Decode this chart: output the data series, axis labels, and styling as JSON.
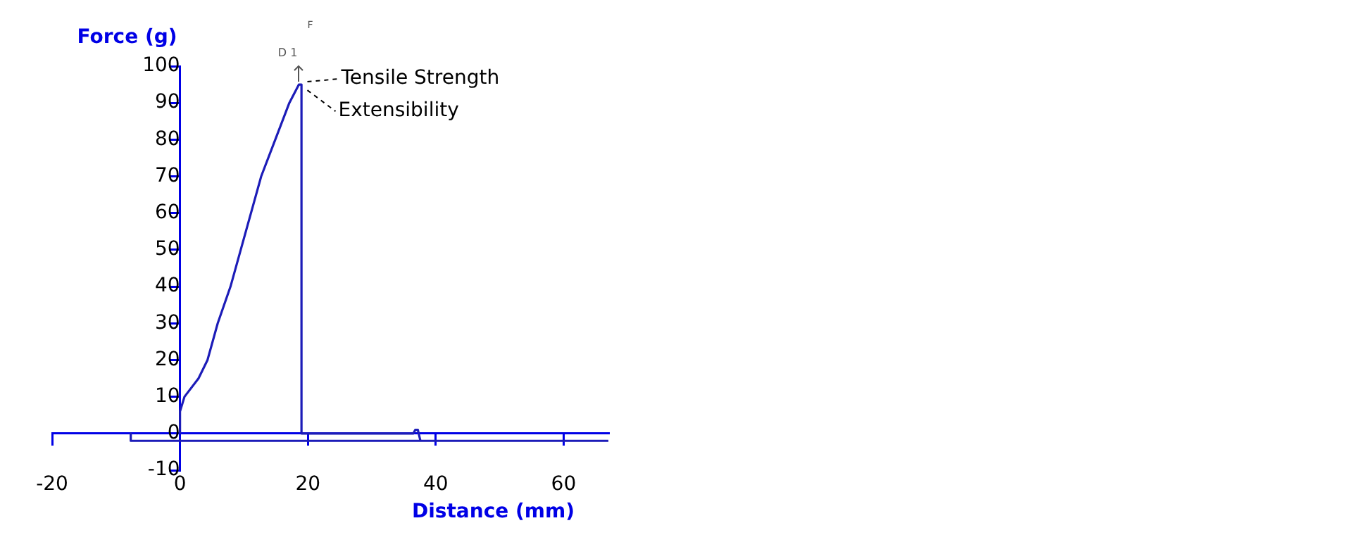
{
  "chart_data": {
    "type": "line",
    "xlabel": "Distance (mm)",
    "ylabel": "Force (g)",
    "xlim": [
      -20,
      67
    ],
    "ylim": [
      -10,
      100
    ],
    "xticks": [
      -20,
      0,
      20,
      40,
      60
    ],
    "yticks": [
      -10,
      0,
      10,
      20,
      30,
      40,
      50,
      60,
      70,
      80,
      90,
      100
    ],
    "grid": false,
    "legend": false,
    "series": [
      {
        "color": "#1c1cb8",
        "x": [
          0,
          0,
          0.7,
          2.9,
          4.3,
          5.9,
          7.9,
          9.5,
          12.7,
          14.9,
          17.1,
          18.6,
          19,
          19,
          36.5,
          36.8,
          37.2,
          37.6
        ],
        "values": [
          0,
          6,
          10,
          15,
          20,
          30,
          40,
          50,
          70,
          80,
          90,
          95,
          95,
          0,
          0,
          1,
          1,
          -2
        ]
      },
      {
        "color": "#1c1cb8",
        "x": [
          -7.7,
          -7.7,
          67
        ],
        "values": [
          0,
          -2,
          -2
        ]
      }
    ],
    "annotations": [
      {
        "text": "Tensile Strength",
        "x": 18.6,
        "y": 95
      },
      {
        "text": "Extensibility",
        "x": 18.6,
        "y": 95
      },
      "D 1",
      "F"
    ]
  }
}
